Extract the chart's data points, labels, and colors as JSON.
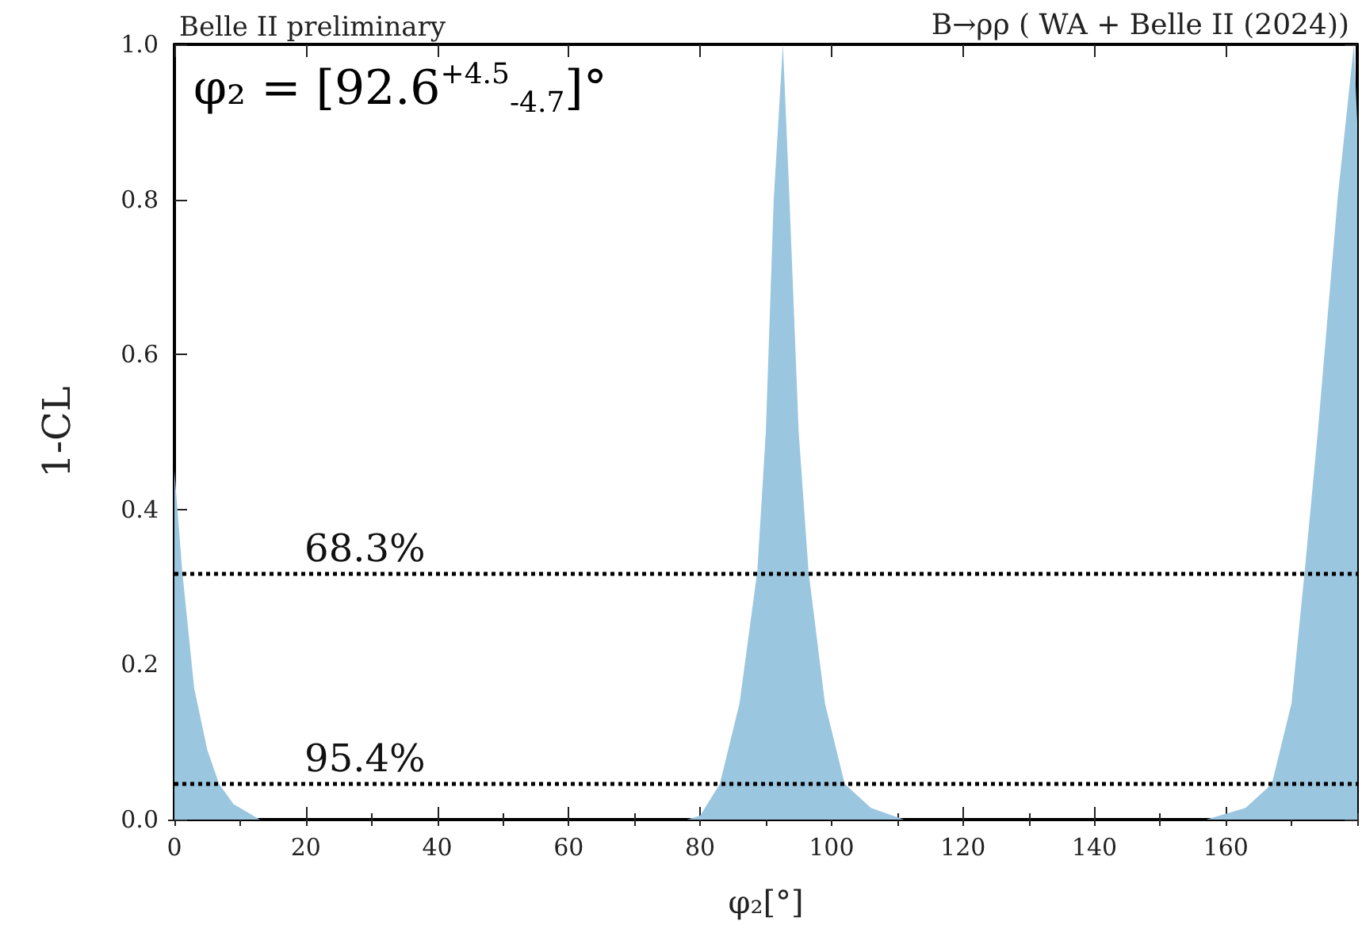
{
  "chart_data": {
    "type": "area",
    "title": "Belle II preliminary",
    "subtitle": "B→ρρ ( WA + Belle II (2024))",
    "xlabel": "φ₂[°]",
    "ylabel": "1-CL",
    "annotations": [
      "φ₂ = [92.6$^{+4.5}$$_{-4.7}$]°",
      "68.3%",
      "95.4%"
    ],
    "x": [
      0,
      1.2,
      3,
      5,
      6.8,
      9,
      13,
      78,
      80,
      83,
      86,
      88.7,
      90,
      91.2,
      92.6,
      93.6,
      95,
      96.5,
      99,
      102,
      106,
      111,
      157,
      163,
      167,
      170,
      172,
      174,
      177,
      179.5,
      180
    ],
    "series": [
      {
        "color": "#9bc6df",
        "values": [
          0.45,
          0.32,
          0.17,
          0.09,
          0.046,
          0.02,
          0,
          0,
          0.005,
          0.046,
          0.15,
          0.32,
          0.5,
          0.8,
          1,
          0.8,
          0.5,
          0.32,
          0.15,
          0.046,
          0.015,
          0,
          0,
          0.015,
          0.046,
          0.15,
          0.32,
          0.5,
          0.8,
          1,
          0.9
        ]
      }
    ],
    "xlim": [
      0,
      180
    ],
    "xticks": [
      0,
      20,
      40,
      60,
      80,
      100,
      120,
      140,
      160
    ],
    "ylim": [
      0,
      1
    ],
    "yticks": [
      {
        "value": 0,
        "label": "0.0"
      },
      0.2,
      0.4,
      0.6,
      0.8,
      {
        "value": 1,
        "label": "1.0"
      }
    ],
    "ref_lines": [
      {
        "axis": "y",
        "value": 0.317,
        "color": "#000000",
        "line_style": "dotted"
      },
      {
        "axis": "y",
        "value": 0.046,
        "color": "#000000",
        "line_style": "dotted"
      }
    ],
    "grid": false
  }
}
